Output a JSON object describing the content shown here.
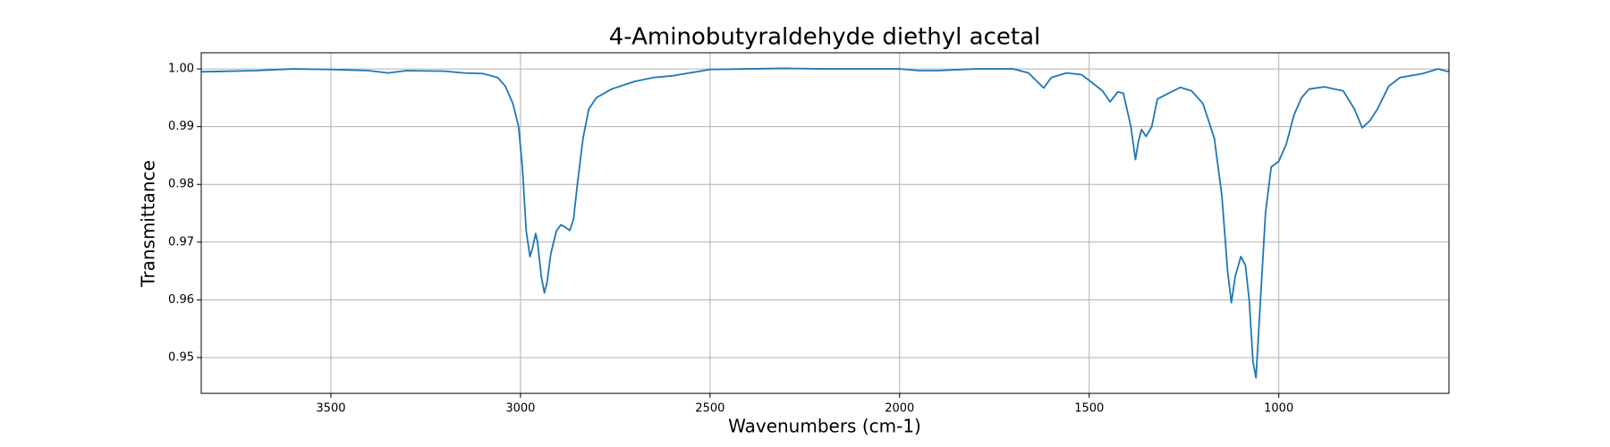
{
  "chart_data": {
    "type": "line",
    "title": "4-Aminobutyraldehyde diethyl acetal",
    "xlabel": "Wavenumbers (cm-1)",
    "ylabel": "Transmittance",
    "x": [
      3842,
      3700,
      3600,
      3500,
      3400,
      3350,
      3300,
      3200,
      3150,
      3100,
      3060,
      3040,
      3020,
      3005,
      2995,
      2985,
      2975,
      2968,
      2960,
      2955,
      2945,
      2937,
      2930,
      2920,
      2905,
      2893,
      2880,
      2870,
      2860,
      2850,
      2835,
      2820,
      2800,
      2760,
      2700,
      2650,
      2600,
      2500,
      2400,
      2300,
      2200,
      2100,
      2000,
      1950,
      1900,
      1800,
      1700,
      1660,
      1640,
      1620,
      1600,
      1560,
      1520,
      1490,
      1465,
      1445,
      1425,
      1410,
      1390,
      1378,
      1370,
      1362,
      1350,
      1335,
      1320,
      1290,
      1260,
      1230,
      1200,
      1170,
      1150,
      1135,
      1125,
      1115,
      1100,
      1088,
      1078,
      1068,
      1060,
      1050,
      1035,
      1020,
      1000,
      980,
      960,
      940,
      920,
      880,
      860,
      830,
      800,
      780,
      760,
      740,
      710,
      680,
      620,
      580,
      551
    ],
    "series": [
      {
        "name": "Transmittance",
        "color": "#1f77b4",
        "values": [
          0.9995,
          0.9997,
          1.0,
          0.9999,
          0.9997,
          0.9993,
          0.9997,
          0.9996,
          0.9993,
          0.9992,
          0.9985,
          0.997,
          0.994,
          0.99,
          0.983,
          0.972,
          0.9675,
          0.969,
          0.9715,
          0.97,
          0.964,
          0.9612,
          0.963,
          0.968,
          0.972,
          0.973,
          0.9725,
          0.972,
          0.974,
          0.98,
          0.988,
          0.993,
          0.995,
          0.9965,
          0.9978,
          0.9985,
          0.9988,
          0.9999,
          1.0,
          1.0001,
          1.0,
          1.0,
          1.0,
          0.9997,
          0.9997,
          1.0,
          1.0,
          0.9993,
          0.998,
          0.9967,
          0.9985,
          0.9993,
          0.999,
          0.9975,
          0.9962,
          0.9943,
          0.996,
          0.9958,
          0.99,
          0.9843,
          0.9875,
          0.9895,
          0.9883,
          0.99,
          0.9948,
          0.9958,
          0.9968,
          0.9962,
          0.994,
          0.988,
          0.978,
          0.965,
          0.9595,
          0.964,
          0.9675,
          0.966,
          0.96,
          0.9493,
          0.9465,
          0.958,
          0.975,
          0.983,
          0.984,
          0.987,
          0.992,
          0.995,
          0.9965,
          0.9969,
          0.9966,
          0.9962,
          0.993,
          0.9898,
          0.991,
          0.993,
          0.997,
          0.9985,
          0.9992,
          1.0,
          0.9995
        ]
      }
    ],
    "xlim": [
      3842,
      551
    ],
    "ylim": [
      0.9438,
      1.0028
    ],
    "xticks": [
      3500,
      3000,
      2500,
      2000,
      1500,
      1000
    ],
    "yticks": [
      0.95,
      0.96,
      0.97,
      0.98,
      0.99,
      {
        "value": 1,
        "label": "1.00"
      }
    ],
    "grid": true
  }
}
